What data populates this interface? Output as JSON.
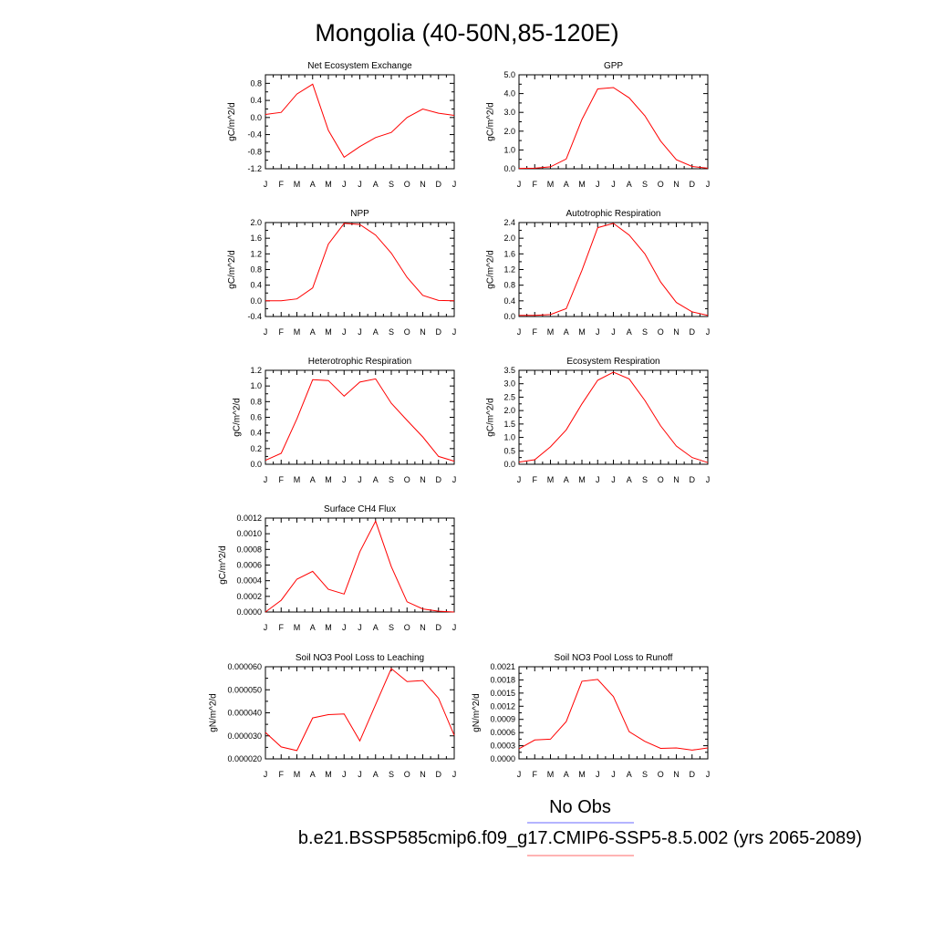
{
  "page": {
    "title": "Mongolia (40-50N,85-120E)"
  },
  "legend": {
    "obs_label": "No Obs",
    "model_label": "b.e21.BSSP585cmip6.f09_g17.CMIP6-SSP5-8.5.002 (yrs 2065-2089)",
    "obs_color": "#6a6aff",
    "model_color": "#ff6a6a"
  },
  "colors": {
    "series": "#ff0000",
    "axis": "#000000"
  },
  "chart_data": [
    {
      "type": "line",
      "title": "Net Ecosystem Exchange",
      "ylabel": "gC/m^2/d",
      "categories": [
        "J",
        "F",
        "M",
        "A",
        "M",
        "J",
        "J",
        "A",
        "S",
        "O",
        "N",
        "D",
        "J"
      ],
      "ylim": [
        -1.2,
        1.0
      ],
      "yticks": [
        "0.8",
        "0.4",
        "0.0",
        "-0.4",
        "-0.8",
        "-1.2"
      ],
      "values": [
        0.07,
        0.12,
        0.55,
        0.78,
        -0.3,
        -0.93,
        -0.68,
        -0.47,
        -0.35,
        0.0,
        0.2,
        0.1,
        0.05
      ]
    },
    {
      "type": "line",
      "title": "GPP",
      "ylabel": "gC/m^2/d",
      "categories": [
        "J",
        "F",
        "M",
        "A",
        "M",
        "J",
        "J",
        "A",
        "S",
        "O",
        "N",
        "D",
        "J"
      ],
      "ylim": [
        0.0,
        5.0
      ],
      "yticks": [
        "5.0",
        "4.0",
        "3.0",
        "2.0",
        "1.0",
        "0.0"
      ],
      "values": [
        0.02,
        0.03,
        0.1,
        0.52,
        2.62,
        4.25,
        4.32,
        3.77,
        2.82,
        1.47,
        0.48,
        0.12,
        0.03
      ]
    },
    {
      "type": "line",
      "title": "NPP",
      "ylabel": "gC/m^2/d",
      "categories": [
        "J",
        "F",
        "M",
        "A",
        "M",
        "J",
        "J",
        "A",
        "S",
        "O",
        "N",
        "D",
        "J"
      ],
      "ylim": [
        -0.4,
        2.0
      ],
      "yticks": [
        "2.0",
        "1.6",
        "1.2",
        "0.8",
        "0.4",
        "0.0",
        "-0.4"
      ],
      "values": [
        0.0,
        0.0,
        0.05,
        0.33,
        1.45,
        1.98,
        1.95,
        1.68,
        1.22,
        0.6,
        0.14,
        0.01,
        0.0
      ]
    },
    {
      "type": "line",
      "title": "Autotrophic Respiration",
      "ylabel": "gC/m^2/d",
      "categories": [
        "J",
        "F",
        "M",
        "A",
        "M",
        "J",
        "J",
        "A",
        "S",
        "O",
        "N",
        "D",
        "J"
      ],
      "ylim": [
        0.0,
        2.4
      ],
      "yticks": [
        "2.4",
        "2.0",
        "1.6",
        "1.2",
        "0.8",
        "0.4",
        "0.0"
      ],
      "values": [
        0.03,
        0.03,
        0.05,
        0.2,
        1.18,
        2.27,
        2.38,
        2.08,
        1.6,
        0.88,
        0.36,
        0.12,
        0.03
      ]
    },
    {
      "type": "line",
      "title": "Heterotrophic Respiration",
      "ylabel": "gC/m^2/d",
      "categories": [
        "J",
        "F",
        "M",
        "A",
        "M",
        "J",
        "J",
        "A",
        "S",
        "O",
        "N",
        "D",
        "J"
      ],
      "ylim": [
        0.0,
        1.2
      ],
      "yticks": [
        "1.2",
        "1.0",
        "0.8",
        "0.6",
        "0.4",
        "0.2",
        "0.0"
      ],
      "values": [
        0.05,
        0.14,
        0.58,
        1.08,
        1.07,
        0.87,
        1.05,
        1.09,
        0.78,
        0.56,
        0.35,
        0.1,
        0.04
      ]
    },
    {
      "type": "line",
      "title": "Ecosystem Respiration",
      "ylabel": "gC/m^2/d",
      "categories": [
        "J",
        "F",
        "M",
        "A",
        "M",
        "J",
        "J",
        "A",
        "S",
        "O",
        "N",
        "D",
        "J"
      ],
      "ylim": [
        0.0,
        3.5
      ],
      "yticks": [
        "3.5",
        "3.0",
        "2.5",
        "2.0",
        "1.5",
        "1.0",
        "0.5",
        "0.0"
      ],
      "values": [
        0.08,
        0.17,
        0.65,
        1.28,
        2.25,
        3.13,
        3.43,
        3.18,
        2.38,
        1.43,
        0.68,
        0.25,
        0.06
      ]
    },
    {
      "type": "line",
      "title": "Surface CH4 Flux",
      "ylabel": "gC/m^2/d",
      "categories": [
        "J",
        "F",
        "M",
        "A",
        "M",
        "J",
        "J",
        "A",
        "S",
        "O",
        "N",
        "D",
        "J"
      ],
      "ylim": [
        0.0,
        0.0012
      ],
      "yticks": [
        "0.0012",
        "0.0010",
        "0.0008",
        "0.0006",
        "0.0004",
        "0.0002",
        "0.0000"
      ],
      "values": [
        0.0,
        0.00015,
        0.00042,
        0.00052,
        0.00029,
        0.00023,
        0.00077,
        0.00116,
        0.00058,
        0.00013,
        4e-05,
        1e-05,
        0.0
      ]
    },
    {
      "type": "line",
      "title": "Soil NO3 Pool Loss to Leaching",
      "ylabel": "gN/m^2/d",
      "categories": [
        "J",
        "F",
        "M",
        "A",
        "M",
        "J",
        "J",
        "A",
        "S",
        "O",
        "N",
        "D",
        "J"
      ],
      "ylim": [
        2e-05,
        6e-05
      ],
      "yticks": [
        "0.000060",
        "0.000050",
        "0.000040",
        "0.000030",
        "0.000020"
      ],
      "values": [
        3.15e-05,
        2.52e-05,
        2.36e-05,
        3.78e-05,
        3.92e-05,
        3.95e-05,
        2.78e-05,
        4.36e-05,
        5.92e-05,
        5.36e-05,
        5.4e-05,
        4.63e-05,
        3.02e-05
      ]
    },
    {
      "type": "line",
      "title": "Soil NO3 Pool Loss to Runoff",
      "ylabel": "gN/m^2/d",
      "categories": [
        "J",
        "F",
        "M",
        "A",
        "M",
        "J",
        "J",
        "A",
        "S",
        "O",
        "N",
        "D",
        "J"
      ],
      "ylim": [
        0.0,
        0.0021
      ],
      "yticks": [
        "0.0021",
        "0.0018",
        "0.0015",
        "0.0012",
        "0.0009",
        "0.0006",
        "0.0003",
        "0.0000"
      ],
      "values": [
        0.00023,
        0.00043,
        0.00045,
        0.00085,
        0.00177,
        0.00181,
        0.00142,
        0.00062,
        0.0004,
        0.00024,
        0.00025,
        0.0002,
        0.00025
      ]
    }
  ]
}
